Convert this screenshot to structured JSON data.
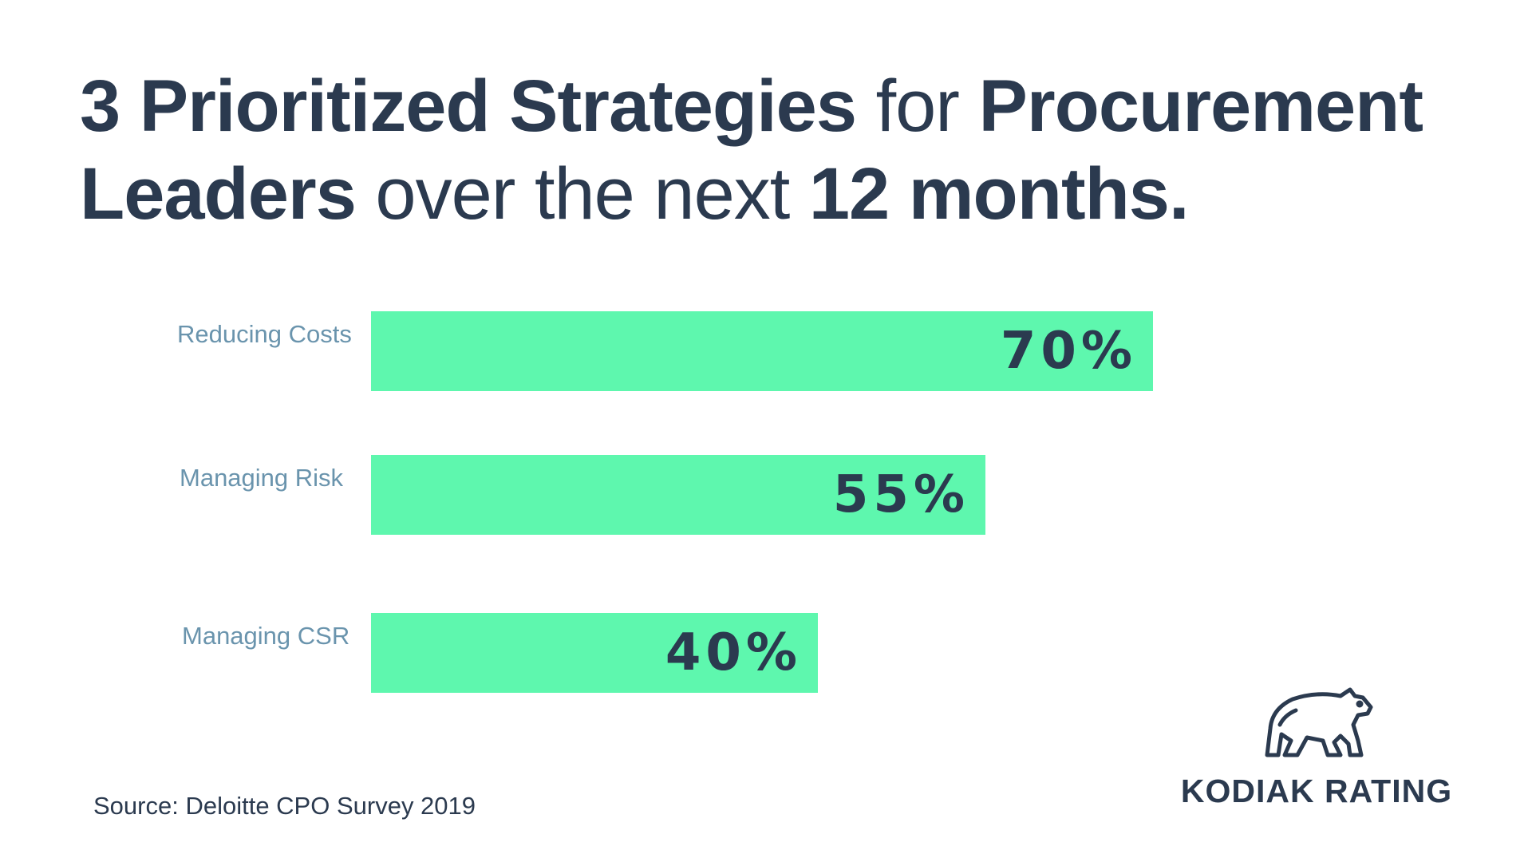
{
  "header": {
    "title_parts": [
      {
        "text": "3 Prioritized Strategies ",
        "weight": "bold"
      },
      {
        "text": "for ",
        "weight": "light"
      },
      {
        "text": "Procurement Leaders ",
        "weight": "bold"
      },
      {
        "text": "over the next ",
        "weight": "light"
      },
      {
        "text": "12 months.",
        "weight": "bold"
      }
    ]
  },
  "chart_data": {
    "type": "bar",
    "orientation": "horizontal",
    "title": "3 Prioritized Strategies for Procurement Leaders over the next 12 months.",
    "categories": [
      "Reducing Costs",
      "Managing Risk",
      "Managing CSR"
    ],
    "values": [
      70,
      55,
      40
    ],
    "value_labels": [
      "70%",
      "55%",
      "40%"
    ],
    "unit": "%",
    "xlim": [
      0,
      100
    ],
    "grid": false,
    "legend": "none",
    "bar_color": "#5ef7ae",
    "label_color": "#6a94ad",
    "value_color": "#2b3a4f"
  },
  "footer": {
    "source": "Source: Deloitte CPO Survey 2019"
  },
  "brand": {
    "name": "KODIAK RATING",
    "logo_icon": "bear-icon"
  }
}
